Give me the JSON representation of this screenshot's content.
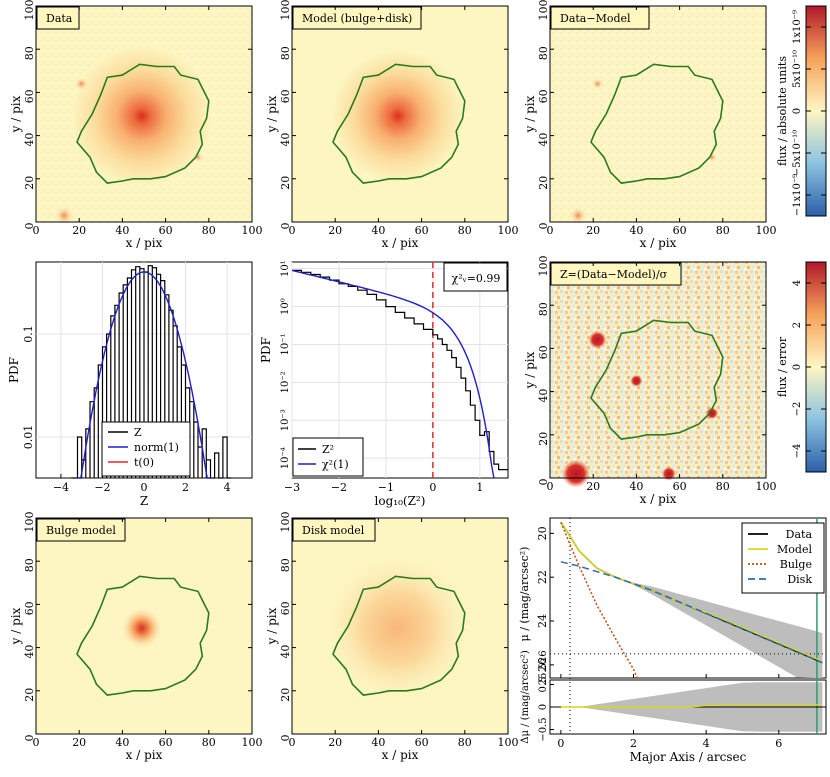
{
  "colors": {
    "background_cream": "#fdf6c3",
    "contour": "#2a7a1e",
    "core_red": "#d7301f",
    "mid_orange": "#f6a25a",
    "cbar_blue": "#2f6db3",
    "cbar_red": "#b2182b",
    "hist_black": "#000000",
    "norm_blue": "#1f1fd0",
    "t_red": "#e8281e",
    "model_yellow": "#d8d820",
    "bulge_orange": "#c84a10",
    "disk_blue": "#2e6fa8",
    "gray_band": "#bdbdbd",
    "vline_green": "#2aa06a"
  },
  "image_panels": {
    "ticks": [
      "0",
      "20",
      "40",
      "60",
      "80",
      "100"
    ],
    "xlabel": "x / pix",
    "ylabel": "y / pix",
    "data": {
      "label": "Data"
    },
    "model": {
      "label": "Model (bulge+disk)"
    },
    "residual": {
      "label": "Data−Model"
    },
    "zmap": {
      "label": "Z=(Data−Model)/σ"
    },
    "bulge": {
      "label": "Bulge model"
    },
    "disk": {
      "label": "Disk model"
    }
  },
  "colorbar_flux": {
    "label": "flux / absolute units",
    "ticks": [
      "−1x10⁻⁹",
      "−5x10⁻¹⁰",
      "0",
      "5x10⁻¹⁰",
      "1x10⁻⁹"
    ]
  },
  "colorbar_z": {
    "label": "flux / error",
    "ticks": [
      "−4",
      "−2",
      "0",
      "2",
      "4"
    ]
  },
  "chart_data": [
    {
      "id": "z_histogram",
      "type": "line",
      "xlabel": "Z",
      "ylabel": "PDF",
      "xlim": [
        -5.2,
        5.2
      ],
      "ylim_log": [
        0.004,
        0.5
      ],
      "yscale": "log",
      "xticks": [
        "−4",
        "−2",
        "0",
        "2",
        "4"
      ],
      "yticks": [
        "0.01",
        "0.1"
      ],
      "legend_position": "lower-center",
      "series": [
        {
          "name": "Z",
          "kind": "step",
          "x": [
            -3.5,
            -3.2,
            -3.0,
            -2.8,
            -2.6,
            -2.4,
            -2.2,
            -2.0,
            -1.8,
            -1.6,
            -1.4,
            -1.2,
            -1.0,
            -0.8,
            -0.6,
            -0.4,
            -0.2,
            0.0,
            0.2,
            0.4,
            0.6,
            0.8,
            1.0,
            1.2,
            1.4,
            1.6,
            1.8,
            2.0,
            2.2,
            2.4,
            2.6,
            2.8,
            3.0,
            3.2,
            3.4,
            3.6,
            3.8,
            4.0
          ],
          "values": [
            0.004,
            0.01,
            0.006,
            0.012,
            0.022,
            0.03,
            0.05,
            0.075,
            0.1,
            0.15,
            0.19,
            0.25,
            0.3,
            0.35,
            0.42,
            0.45,
            0.43,
            0.4,
            0.46,
            0.44,
            0.38,
            0.33,
            0.24,
            0.17,
            0.12,
            0.075,
            0.05,
            0.03,
            0.022,
            0.014,
            0.008,
            0.012,
            0.006,
            0.004,
            0.007,
            0.004,
            0.01,
            0.004
          ]
        },
        {
          "name": "norm(1)",
          "kind": "gaussian",
          "sigma": 1.0,
          "scale": 0.4
        },
        {
          "name": "t(0)",
          "kind": "none"
        }
      ]
    },
    {
      "id": "z2_histogram",
      "type": "line",
      "xlabel": "log₁₀(Z²)",
      "ylabel": "PDF",
      "xlim": [
        -3,
        1.6
      ],
      "ylim_log": [
        3e-05,
        15
      ],
      "yscale": "log",
      "xticks": [
        "−3",
        "−2",
        "−1",
        "0",
        "1"
      ],
      "yticks": [
        "10⁻⁴",
        "10⁻³",
        "10⁻²",
        "10⁻¹",
        "10⁰",
        "10¹"
      ],
      "annotation": "χ²ᵥ=0.99",
      "vline_x": 0,
      "legend_position": "lower-left",
      "series": [
        {
          "name": "Z²",
          "kind": "step",
          "x": [
            -3.0,
            -2.8,
            -2.6,
            -2.4,
            -2.2,
            -2.0,
            -1.8,
            -1.6,
            -1.4,
            -1.2,
            -1.0,
            -0.8,
            -0.6,
            -0.4,
            -0.2,
            0.0,
            0.1,
            0.2,
            0.3,
            0.4,
            0.5,
            0.6,
            0.7,
            0.8,
            0.9,
            1.0,
            1.1,
            1.2,
            1.3,
            1.4,
            1.5
          ],
          "values": [
            9,
            8,
            7,
            6,
            5,
            4,
            3.4,
            2.7,
            2.1,
            1.5,
            1.0,
            0.7,
            0.5,
            0.35,
            0.25,
            0.18,
            0.14,
            0.1,
            0.07,
            0.045,
            0.025,
            0.013,
            0.006,
            0.0025,
            0.001,
            0.0004,
            0.0005,
            0.00015,
            7e-05,
            5e-05,
            5e-05
          ]
        },
        {
          "name": "χ²(1)",
          "kind": "chi2",
          "smooth": true
        }
      ]
    },
    {
      "id": "profile",
      "type": "line",
      "xlabel": "Major Axis / arcsec",
      "ylabel_top": "μ / (mag/arcsec²)",
      "ylabel_bottom": "Δμ / (mag/arcsec²)",
      "xlim": [
        -0.3,
        7.3
      ],
      "ylim_top": [
        26.6,
        19.3
      ],
      "ylim_bottom": [
        -0.6,
        0.6
      ],
      "xticks": [
        "0",
        "2",
        "4",
        "6"
      ],
      "yticks_top": [
        "20",
        "22",
        "24",
        "26"
      ],
      "yticks_bottom": [
        "−0.5",
        "0",
        "0.5"
      ],
      "ref_hline_top": 25.5,
      "ref_hline_label": "25.526",
      "vline_dotted_x": 0.25,
      "vline_green_x": 7.05,
      "legend_position": "top-right",
      "series": [
        {
          "name": "Data",
          "x": [
            0,
            0.2,
            0.5,
            1,
            1.5,
            2,
            2.5,
            3,
            3.5,
            4,
            4.5,
            5,
            5.5,
            6,
            6.5,
            7,
            7.2
          ],
          "values": [
            19.5,
            20.0,
            20.8,
            21.6,
            22.0,
            22.3,
            22.6,
            22.95,
            23.3,
            23.65,
            24.0,
            24.35,
            24.7,
            25.05,
            25.4,
            25.75,
            25.9
          ]
        },
        {
          "name": "Model",
          "x": [
            0,
            0.2,
            0.5,
            1,
            1.5,
            2,
            2.5,
            3,
            3.5,
            4,
            4.5,
            5,
            5.5,
            6,
            6.5,
            7,
            7.2
          ],
          "values": [
            19.5,
            20.0,
            20.8,
            21.6,
            22.0,
            22.3,
            22.6,
            22.95,
            23.3,
            23.62,
            23.95,
            24.3,
            24.65,
            25.0,
            25.35,
            25.7,
            25.85
          ]
        },
        {
          "name": "Bulge",
          "x": [
            0,
            0.2,
            0.5,
            1,
            1.5,
            2,
            2.1
          ],
          "values": [
            19.5,
            20.3,
            21.5,
            23.3,
            24.8,
            26.2,
            26.6
          ]
        },
        {
          "name": "Disk",
          "x": [
            0,
            0.5,
            1,
            1.5,
            2,
            2.5,
            3,
            3.5,
            4,
            4.5,
            5,
            5.5,
            6,
            6.5,
            7,
            7.2
          ],
          "values": [
            21.3,
            21.5,
            21.75,
            22.0,
            22.3,
            22.6,
            22.95,
            23.3,
            23.65,
            24.0,
            24.35,
            24.7,
            25.05,
            25.4,
            25.75,
            25.9
          ]
        }
      ]
    }
  ]
}
